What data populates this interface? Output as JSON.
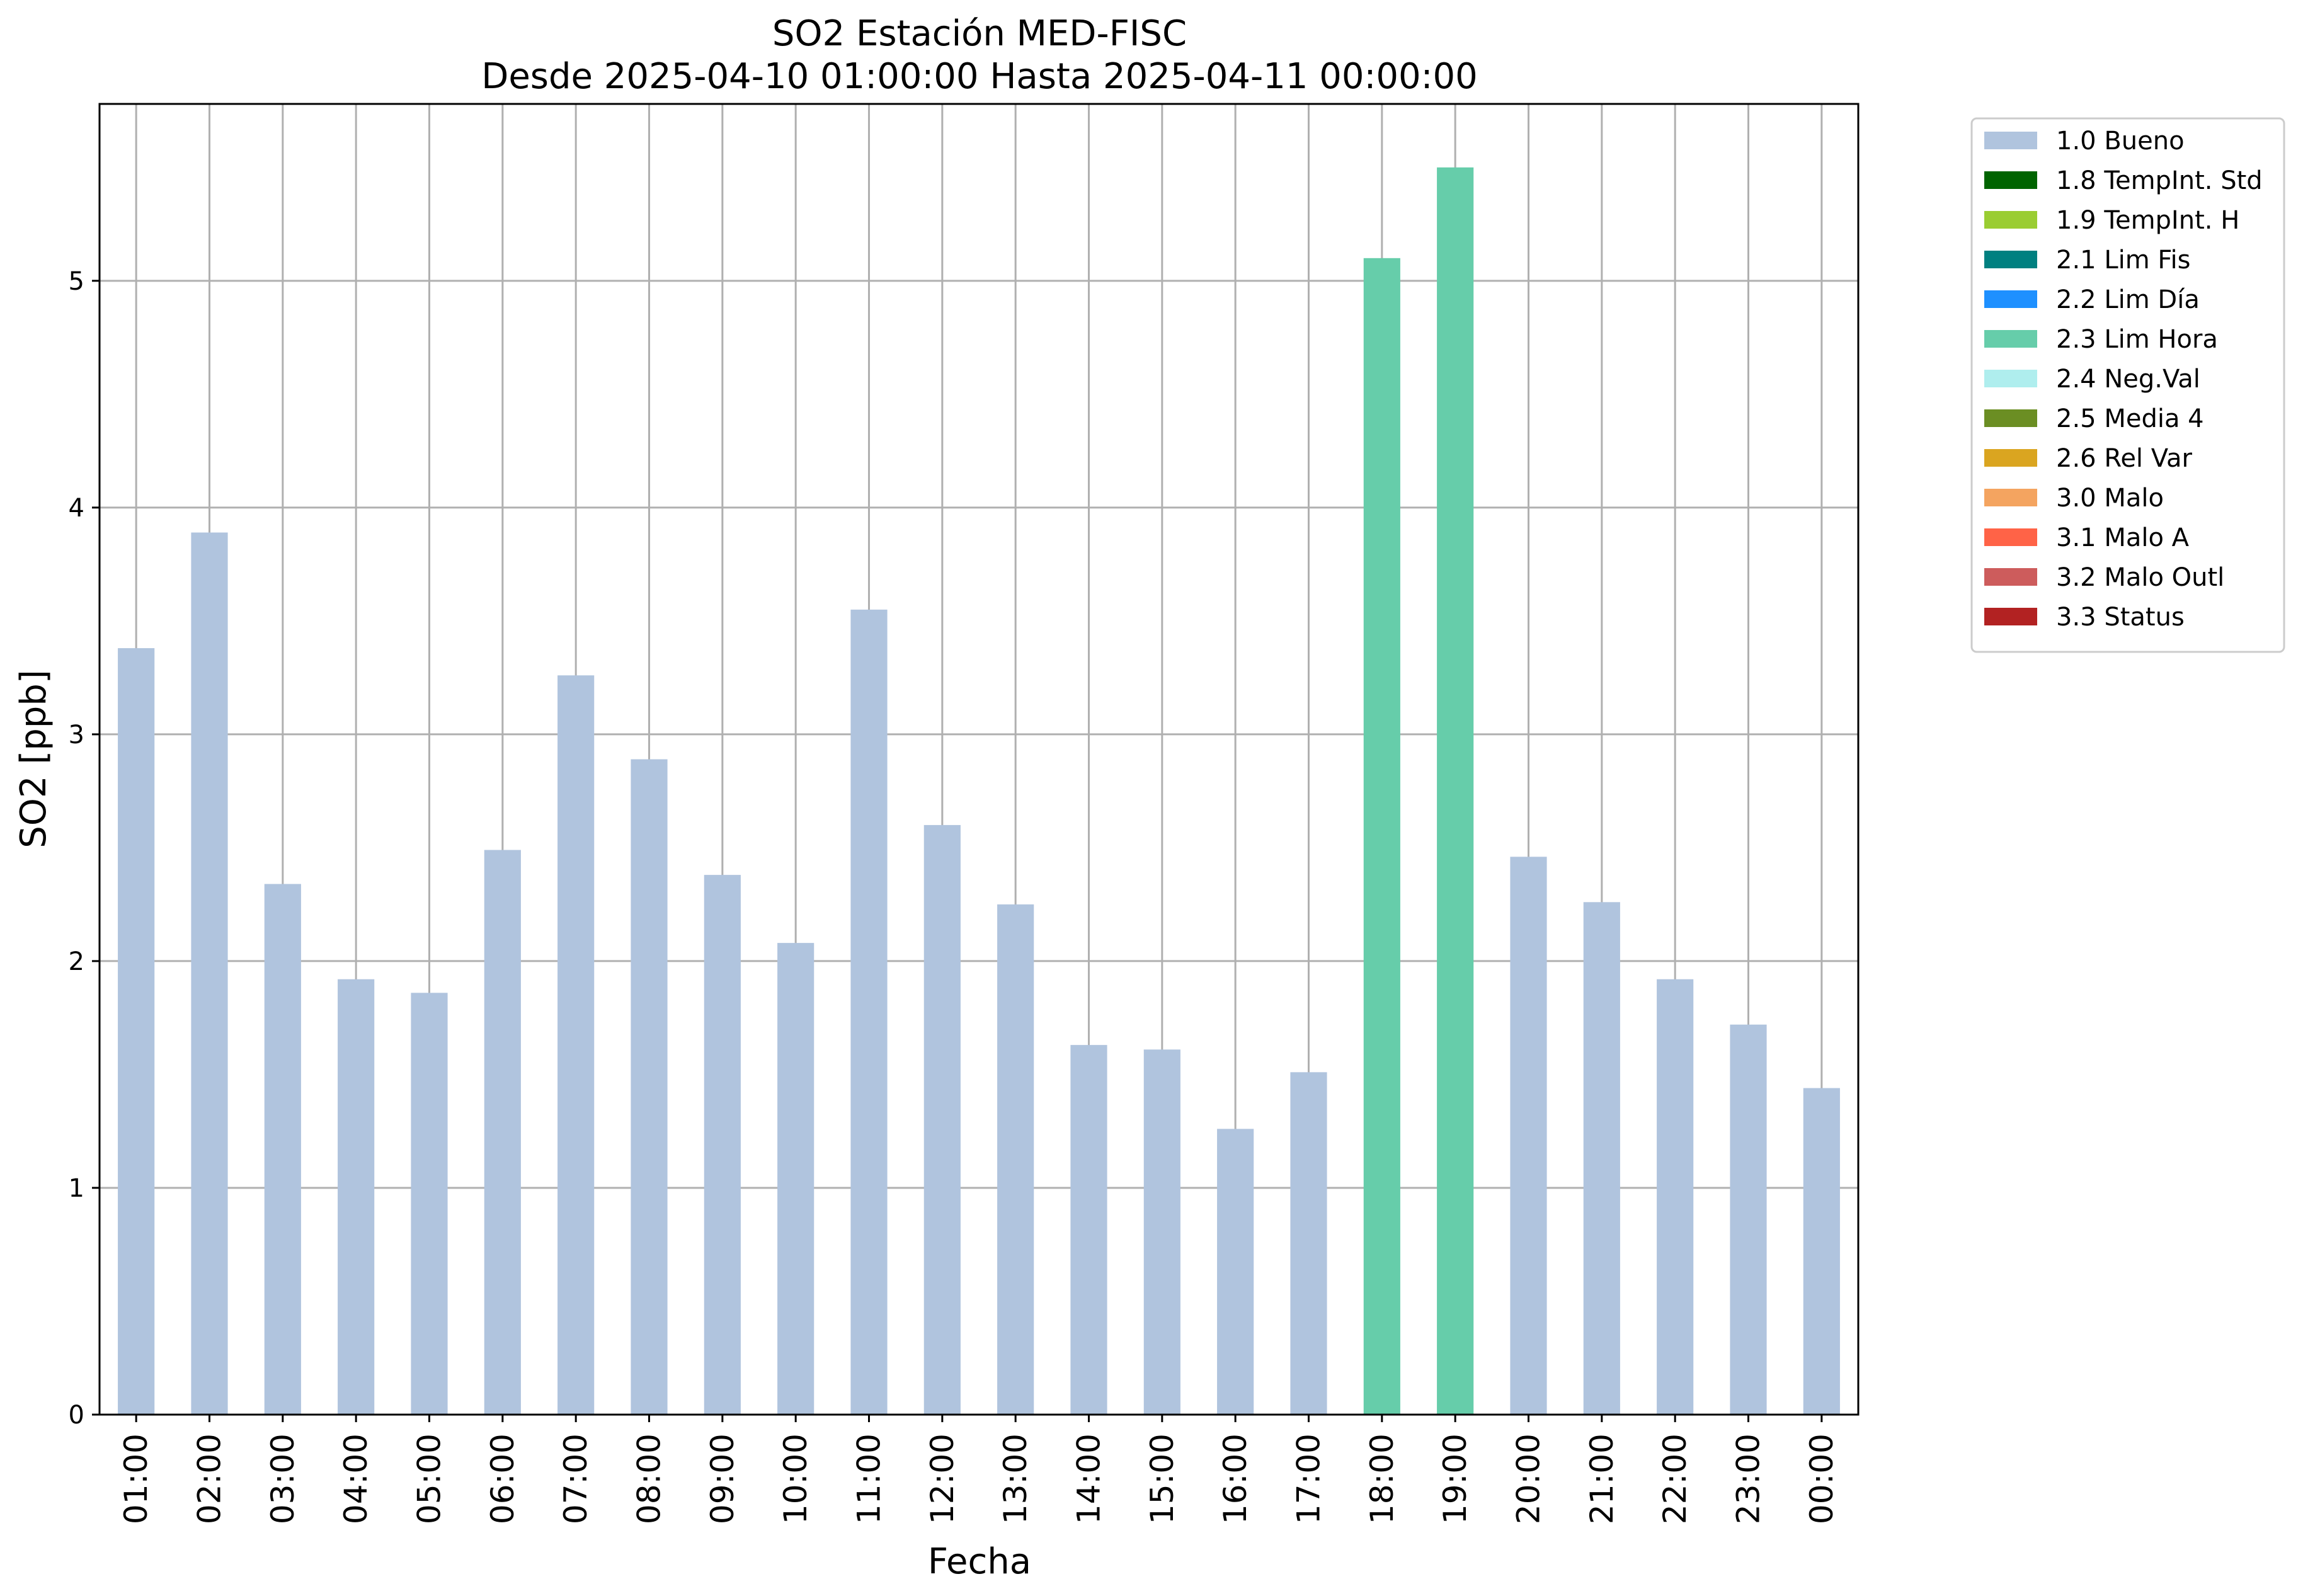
{
  "chart_data": {
    "type": "bar",
    "title": "SO2 Estación MED-FISC",
    "subtitle": "Desde 2025-04-10 01:00:00 Hasta 2025-04-11 00:00:00",
    "xlabel": "Fecha",
    "ylabel": "SO2 [ppb]",
    "ylim": [
      0,
      5.78
    ],
    "yticks": [
      0,
      1,
      2,
      3,
      4,
      5
    ],
    "grid": true,
    "legend_position": "outside-top-right",
    "categories": [
      "01:00",
      "02:00",
      "03:00",
      "04:00",
      "05:00",
      "06:00",
      "07:00",
      "08:00",
      "09:00",
      "10:00",
      "11:00",
      "12:00",
      "13:00",
      "14:00",
      "15:00",
      "16:00",
      "17:00",
      "18:00",
      "19:00",
      "20:00",
      "21:00",
      "22:00",
      "23:00",
      "00:00"
    ],
    "values": [
      3.38,
      3.89,
      2.34,
      1.92,
      1.86,
      2.49,
      3.26,
      2.89,
      2.38,
      2.08,
      3.55,
      2.6,
      2.25,
      1.63,
      1.61,
      1.26,
      1.51,
      5.1,
      5.5,
      2.46,
      2.26,
      1.92,
      1.72,
      1.44
    ],
    "flags": [
      "1.0 Bueno",
      "1.0 Bueno",
      "1.0 Bueno",
      "1.0 Bueno",
      "1.0 Bueno",
      "1.0 Bueno",
      "1.0 Bueno",
      "1.0 Bueno",
      "1.0 Bueno",
      "1.0 Bueno",
      "1.0 Bueno",
      "1.0 Bueno",
      "1.0 Bueno",
      "1.0 Bueno",
      "1.0 Bueno",
      "1.0 Bueno",
      "1.0 Bueno",
      "2.3 Lim Hora",
      "2.3 Lim Hora",
      "1.0 Bueno",
      "1.0 Bueno",
      "1.0 Bueno",
      "1.0 Bueno",
      "1.0 Bueno"
    ],
    "legend": [
      {
        "name": "1.0 Bueno",
        "color": "#b0c4de"
      },
      {
        "name": "1.8 TempInt. Std",
        "color": "#006400"
      },
      {
        "name": "1.9 TempInt. H",
        "color": "#9acd32"
      },
      {
        "name": "2.1 Lim Fis",
        "color": "#008080"
      },
      {
        "name": "2.2 Lim Día",
        "color": "#1e90ff"
      },
      {
        "name": "2.3 Lim Hora",
        "color": "#66cdaa"
      },
      {
        "name": "2.4 Neg.Val",
        "color": "#afeeee"
      },
      {
        "name": "2.5 Media 4",
        "color": "#6b8e23"
      },
      {
        "name": "2.6 Rel Var",
        "color": "#daa520"
      },
      {
        "name": "3.0 Malo",
        "color": "#f4a460"
      },
      {
        "name": "3.1 Malo A",
        "color": "#ff6347"
      },
      {
        "name": "3.2 Malo Outl",
        "color": "#cd5c5c"
      },
      {
        "name": "3.3 Status",
        "color": "#b22222"
      }
    ]
  }
}
